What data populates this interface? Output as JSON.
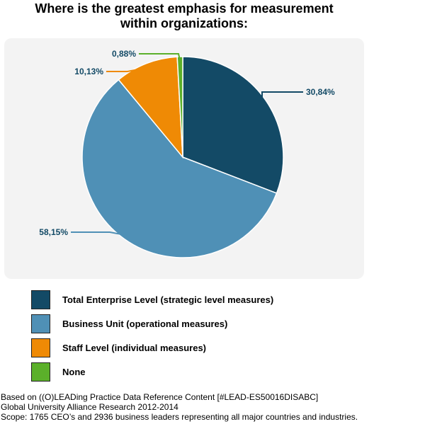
{
  "chart_data": {
    "type": "pie",
    "title_lines": [
      "Where is the greatest emphasis for measurement",
      "within organizations:"
    ],
    "slices": [
      {
        "name": "Total Enterprise Level (strategic level measures)",
        "value": 30.84,
        "label": "30,84%",
        "color": "#134a66"
      },
      {
        "name": "Business Unit (operational measures)",
        "value": 58.15,
        "label": "58,15%",
        "color": "#4f90b6"
      },
      {
        "name": "Staff Level (individual measures)",
        "value": 10.13,
        "label": "10,13%",
        "color": "#ef8a05"
      },
      {
        "name": "None",
        "value": 0.88,
        "label": "0,88%",
        "color": "#5bb02a"
      }
    ],
    "legend_position": "bottom"
  },
  "footer": {
    "line1": "Based on ((O)LEADing Practice Data Reference Content [#LEAD-ES50016DISABC]",
    "line2": "Global University Alliance Research 2012-2014",
    "line3": "Scope: 1765 CEO’s and 2936 business leaders representing all major countries and industries."
  }
}
